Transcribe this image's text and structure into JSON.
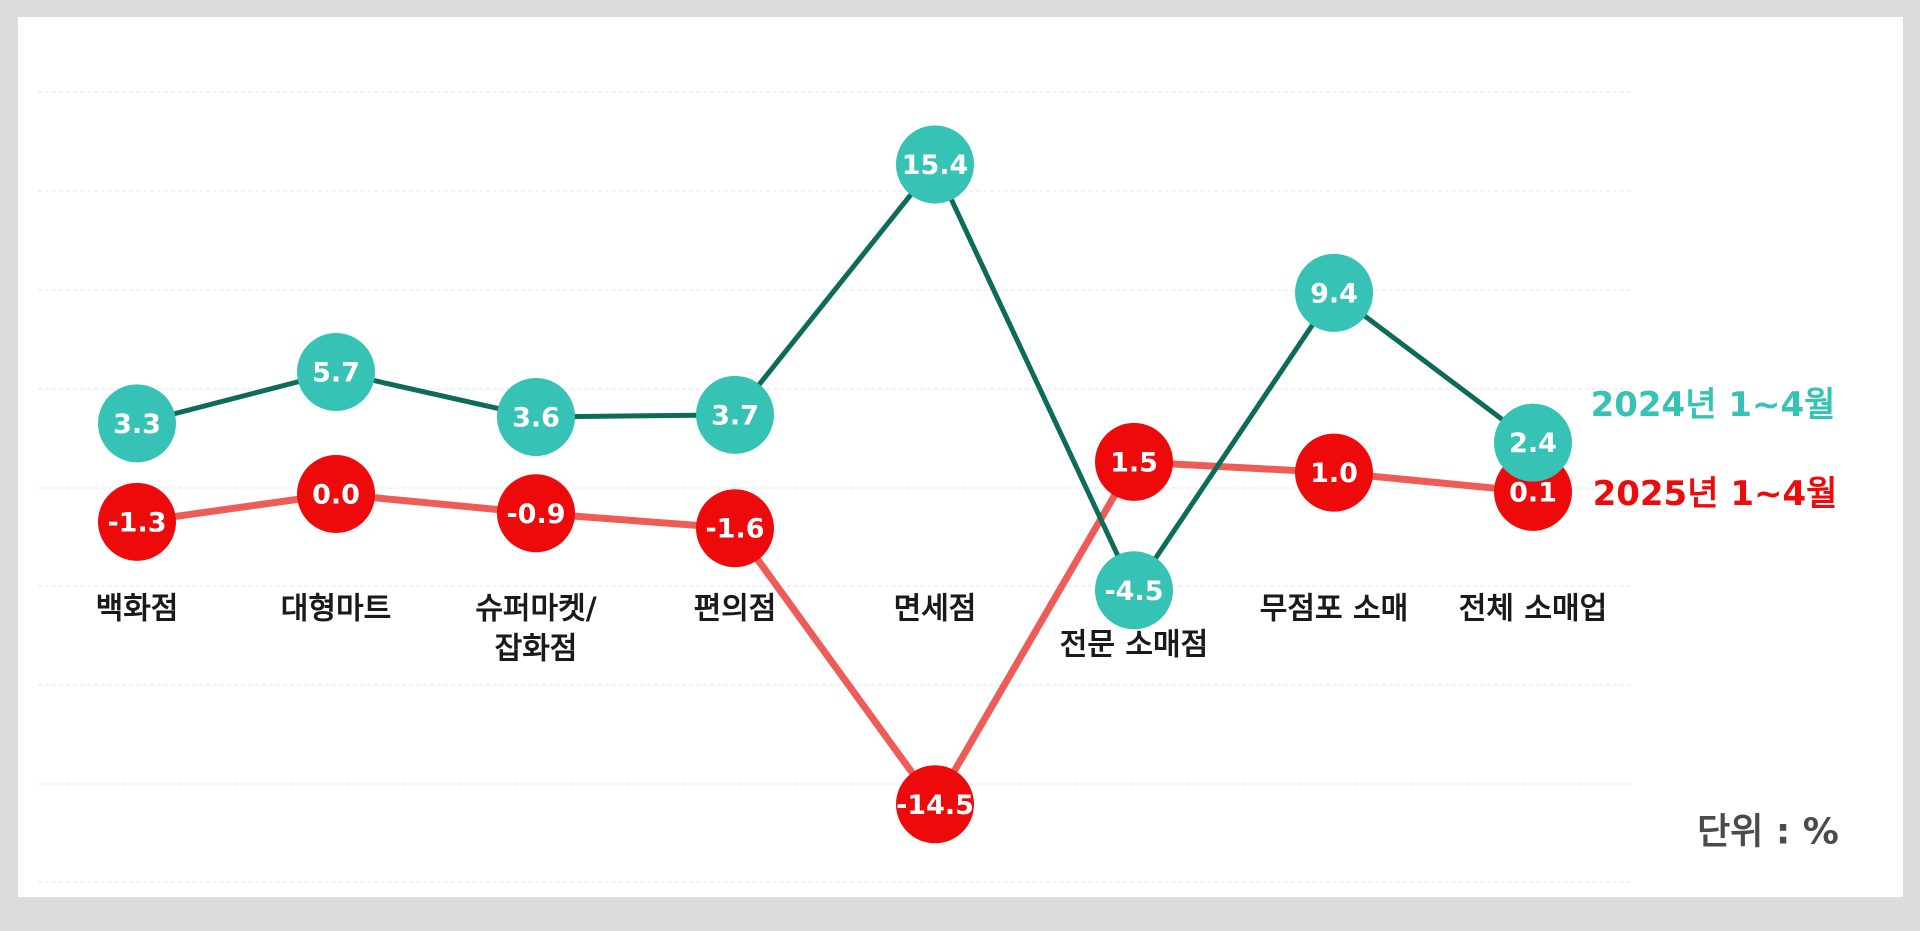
{
  "chart_data": {
    "type": "line",
    "categories": [
      "백화점",
      "대형마트",
      "슈퍼마켓/\n잡화점",
      "편의점",
      "면세점",
      "전문 소매점",
      "무점포 소매",
      "전체 소매업"
    ],
    "series": [
      {
        "name": "2024년 1~4월",
        "values": [
          3.3,
          5.7,
          3.6,
          3.7,
          15.4,
          -4.5,
          9.4,
          2.4
        ],
        "labels": [
          "3.3",
          "5.7",
          "3.6",
          "3.7",
          "15.4",
          "-4.5",
          "9.4",
          "2.4"
        ],
        "marker_color": "#36c2b4",
        "line_color": "#0e6b5a"
      },
      {
        "name": "2025년 1~4월",
        "values": [
          -1.3,
          0.0,
          -0.9,
          -1.6,
          -14.5,
          1.5,
          1.0,
          0.1
        ],
        "labels": [
          "-1.3",
          "0.0",
          "-0.9",
          "-1.6",
          "-14.5",
          "1.5",
          "1.0",
          "0.1"
        ],
        "marker_color": "#ee0a0a",
        "line_color": "#ee5c58"
      }
    ],
    "legend_placement": "right",
    "unit": "단위 : %",
    "grid": true
  }
}
